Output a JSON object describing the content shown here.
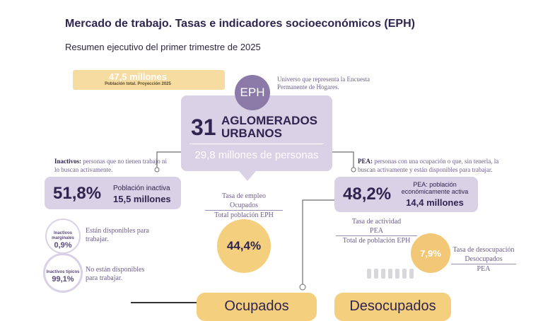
{
  "header": {
    "title": "Mercado de trabajo. Tasas e indicadores socioeconómicos (EPH)",
    "subtitle": "Resumen ejecutivo del primer trimestre de 2025"
  },
  "population": {
    "value": "47,5 millones",
    "note": "Población total. Proyección 2025"
  },
  "eph": {
    "badge": "EPH",
    "description": "Universo que representa la Encuesta Permanente de Hogares.",
    "count": "31",
    "label": "AGLOMERADOS URBANOS",
    "people": "29,8 millones de personas"
  },
  "inactive": {
    "term": "Inactivos:",
    "definition": "personas que no tienen trabajo ni lo buscan activamente.",
    "rate": "51,8%",
    "label": "Población inactiva",
    "amount": "15,5 millones",
    "marginal": {
      "label": "Inactivos marginales",
      "rate": "0,9%",
      "text": "Están disponibles para trabajar."
    },
    "typical": {
      "label": "Inactivos típicos",
      "rate": "99,1%",
      "text": "No están disponibles para trabajar."
    }
  },
  "pea": {
    "term": "PEA:",
    "definition": "personas con una ocupación o que, sin tenerla, la buscan activamente y están disponibles para trabajar.",
    "rate": "48,2%",
    "label": "PEA: población económicamente activa",
    "amount": "14,4 millones"
  },
  "employment": {
    "title": "Tasa de empleo",
    "numerator": "Ocupados",
    "denominator": "Total población EPH",
    "rate": "44,4%"
  },
  "activity": {
    "title": "Tasa de actividad",
    "numerator": "PEA",
    "denominator": "Total de población EPH"
  },
  "unemployment": {
    "rate": "7,9%",
    "title": "Tasa de desocupación",
    "numerator": "Desocupados",
    "denominator": "PEA"
  },
  "bottom": {
    "employed": "Ocupados",
    "unemployed": "Desocupados"
  }
}
